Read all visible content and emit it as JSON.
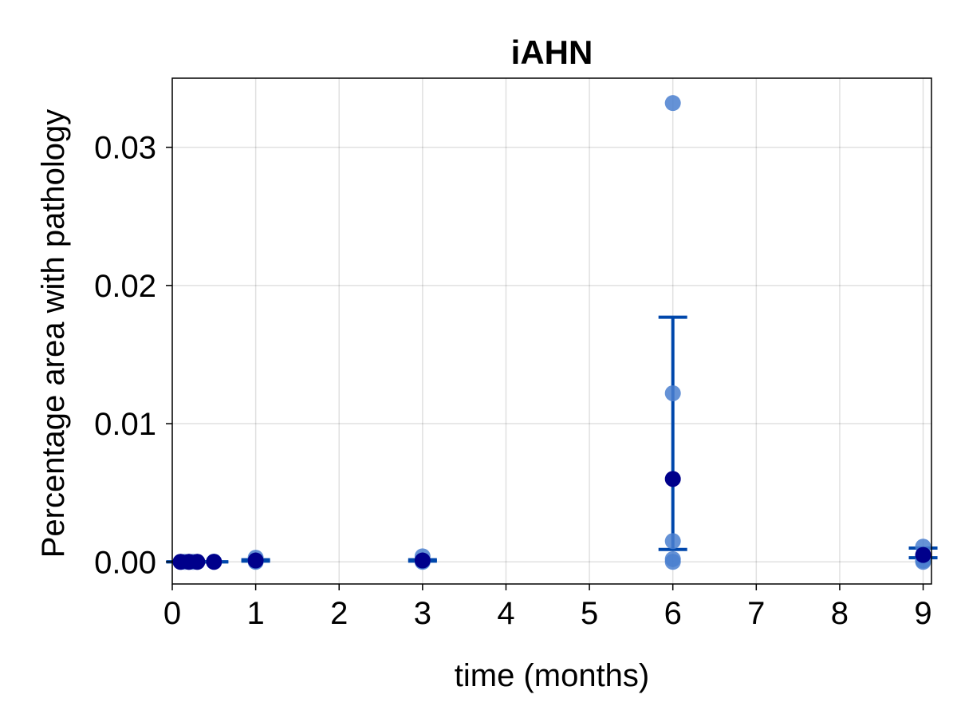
{
  "chart_data": {
    "type": "scatter",
    "title": "iAHN",
    "xlabel": "time (months)",
    "ylabel": "Percentage area with pathology",
    "xlim": [
      0,
      9.1
    ],
    "ylim": [
      -0.0016,
      0.035
    ],
    "x_ticks": [
      0,
      1,
      2,
      3,
      4,
      5,
      6,
      7,
      8,
      9
    ],
    "x_tick_labels": [
      "0",
      "1",
      "2",
      "3",
      "4",
      "5",
      "6",
      "7",
      "8",
      "9"
    ],
    "y_ticks": [
      0.0,
      0.01,
      0.02,
      0.03
    ],
    "y_tick_labels": [
      "0.00",
      "0.01",
      "0.02",
      "0.03"
    ],
    "grid": true,
    "colors": {
      "points": "#4a7fcf",
      "mean_points": "#00008b",
      "error_bars": "#0047ab"
    },
    "series": [
      {
        "role": "individual-points",
        "points": [
          {
            "x": 0.1,
            "y": 0.0
          },
          {
            "x": 0.15,
            "y": 0.0
          },
          {
            "x": 0.2,
            "y": 0.0
          },
          {
            "x": 0.25,
            "y": 0.0
          },
          {
            "x": 0.3,
            "y": 0.0
          },
          {
            "x": 0.5,
            "y": 0.0
          },
          {
            "x": 0.5,
            "y": 2e-05
          },
          {
            "x": 1.0,
            "y": 0.0
          },
          {
            "x": 1.0,
            "y": 5e-05
          },
          {
            "x": 1.0,
            "y": 0.0003
          },
          {
            "x": 3.0,
            "y": 0.0
          },
          {
            "x": 3.0,
            "y": 5e-05
          },
          {
            "x": 3.0,
            "y": 0.0004
          },
          {
            "x": 6.0,
            "y": 0.0332
          },
          {
            "x": 6.0,
            "y": 0.0122
          },
          {
            "x": 6.0,
            "y": 0.0015
          },
          {
            "x": 6.0,
            "y": 0.0002
          },
          {
            "x": 6.0,
            "y": 0.0
          },
          {
            "x": 9.0,
            "y": 0.0011
          },
          {
            "x": 9.0,
            "y": 0.0004
          },
          {
            "x": 9.0,
            "y": 0.0001
          },
          {
            "x": 9.0,
            "y": 0.0
          }
        ]
      },
      {
        "role": "mean-with-error",
        "points": [
          {
            "x": 0.1,
            "y": 0.0,
            "low": 0.0,
            "high": 0.0
          },
          {
            "x": 0.2,
            "y": 0.0,
            "low": 0.0,
            "high": 0.0
          },
          {
            "x": 0.3,
            "y": 0.0,
            "low": 0.0,
            "high": 0.0
          },
          {
            "x": 0.5,
            "y": 0.0,
            "low": 0.0,
            "high": 0.0
          },
          {
            "x": 1.0,
            "y": 0.0001,
            "low": 5e-05,
            "high": 0.00015
          },
          {
            "x": 3.0,
            "y": 0.0001,
            "low": 5e-05,
            "high": 0.00015
          },
          {
            "x": 6.0,
            "y": 0.006,
            "low": 0.0009,
            "high": 0.0177
          },
          {
            "x": 9.0,
            "y": 0.0005,
            "low": 0.0003,
            "high": 0.001
          }
        ]
      }
    ]
  }
}
